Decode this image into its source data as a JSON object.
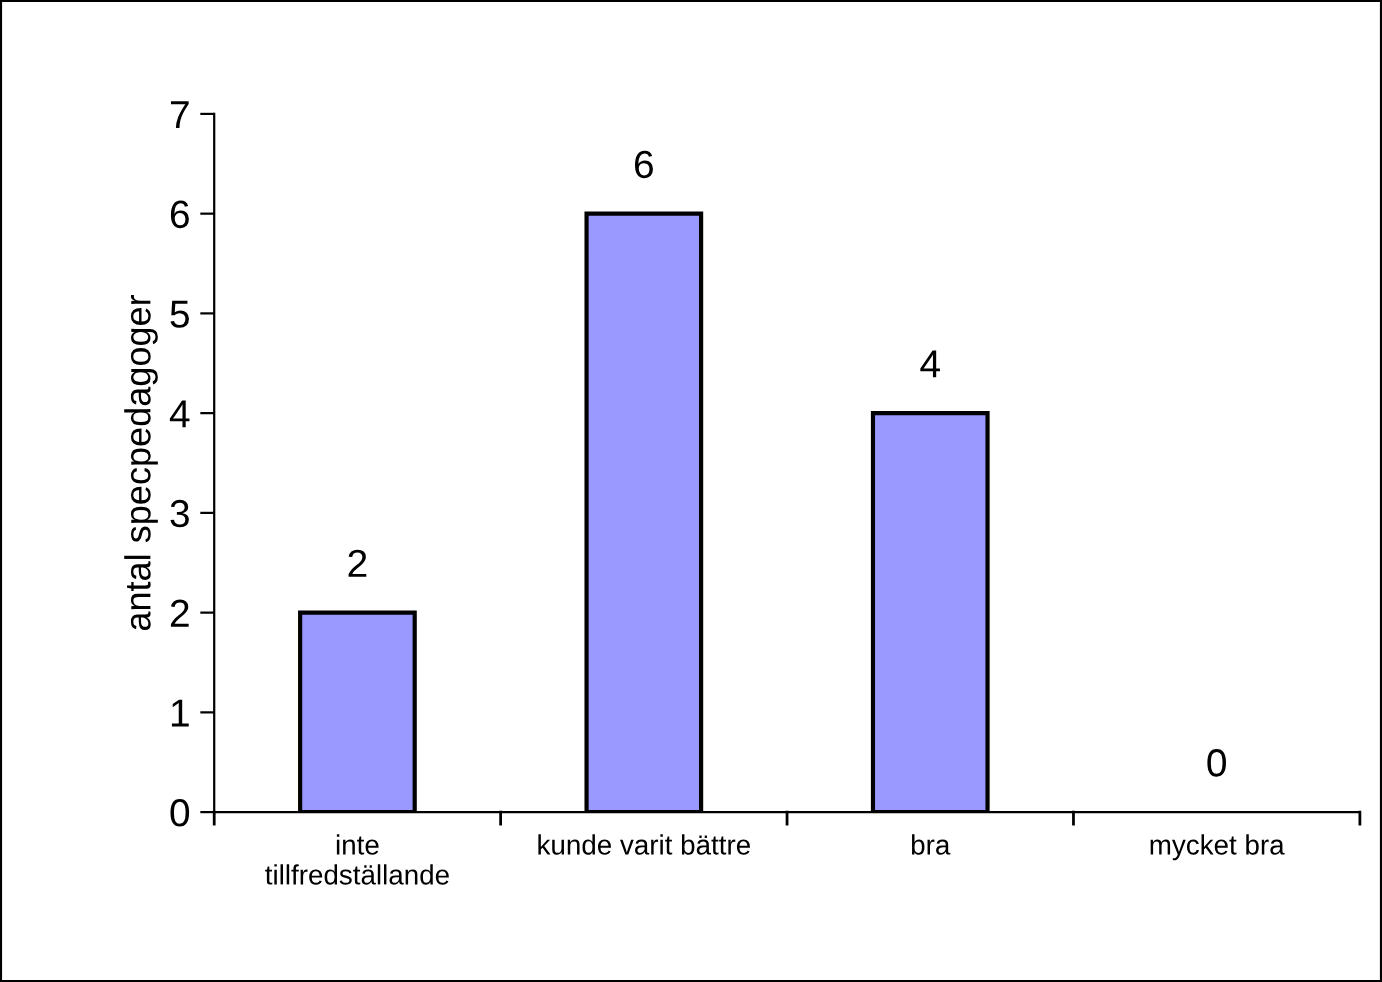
{
  "chart_data": {
    "type": "bar",
    "ylabel": "antal specpedagoger",
    "categories": [
      "inte tillfredställande",
      "kunde varit bättre",
      "bra",
      "mycket bra"
    ],
    "values": [
      2,
      6,
      4,
      0
    ],
    "color": "#9999ff",
    "ylim": [
      0,
      7
    ],
    "yticks": [
      0,
      1,
      2,
      3,
      4,
      5,
      6,
      7
    ],
    "grid": false,
    "data_labels": true,
    "legend": false
  }
}
